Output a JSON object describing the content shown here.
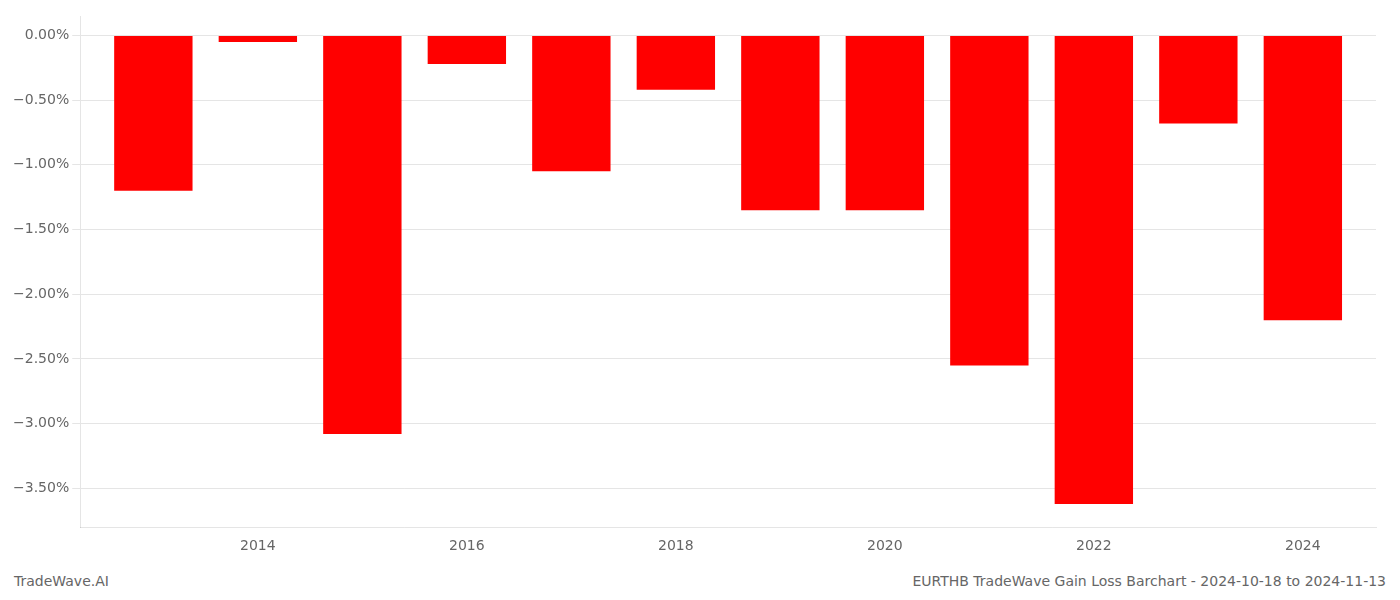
{
  "chart_data": {
    "type": "bar",
    "x": [
      2013,
      2014,
      2015,
      2016,
      2017,
      2018,
      2019,
      2020,
      2021,
      2022,
      2023,
      2024
    ],
    "values": [
      -1.2,
      -0.05,
      -3.08,
      -0.22,
      -1.05,
      -0.42,
      -1.35,
      -1.35,
      -2.55,
      -3.62,
      -0.68,
      -2.2
    ],
    "color": "#ff0000",
    "xlim": [
      2012.3,
      2024.7
    ],
    "xticks": [
      2014,
      2016,
      2018,
      2020,
      2022,
      2024
    ],
    "ylim": [
      -3.8,
      0.15
    ],
    "yticks": [
      {
        "value": 0.0,
        "label": "0.00%"
      },
      {
        "value": -0.5,
        "label": "−0.50%"
      },
      {
        "value": -1.0,
        "label": "−1.00%"
      },
      {
        "value": -1.5,
        "label": "−1.50%"
      },
      {
        "value": -2.0,
        "label": "−2.00%"
      },
      {
        "value": -2.5,
        "label": "−2.50%"
      },
      {
        "value": -3.0,
        "label": "−3.00%"
      },
      {
        "value": -3.5,
        "label": "−3.50%"
      }
    ],
    "grid": "y",
    "annotations": [
      "TradeWave.AI",
      "EURTHB TradeWave Gain Loss Barchart - 2024-10-18 to 2024-11-13"
    ]
  }
}
